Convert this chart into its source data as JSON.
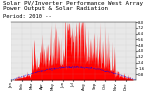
{
  "title_line1": "Solar PV/Inverter Performance West Array Power Output & Solar Radiation",
  "title_line2": "Period: 2010 --",
  "bg_color": "#ffffff",
  "plot_bg_color": "#e8e8e8",
  "red_color": "#ff0000",
  "blue_color": "#0000ff",
  "grid_color": "#aaaaaa",
  "ylim": [
    0,
    8
  ],
  "n_points": 365,
  "title_fontsize": 4.2,
  "tick_fontsize": 2.8
}
